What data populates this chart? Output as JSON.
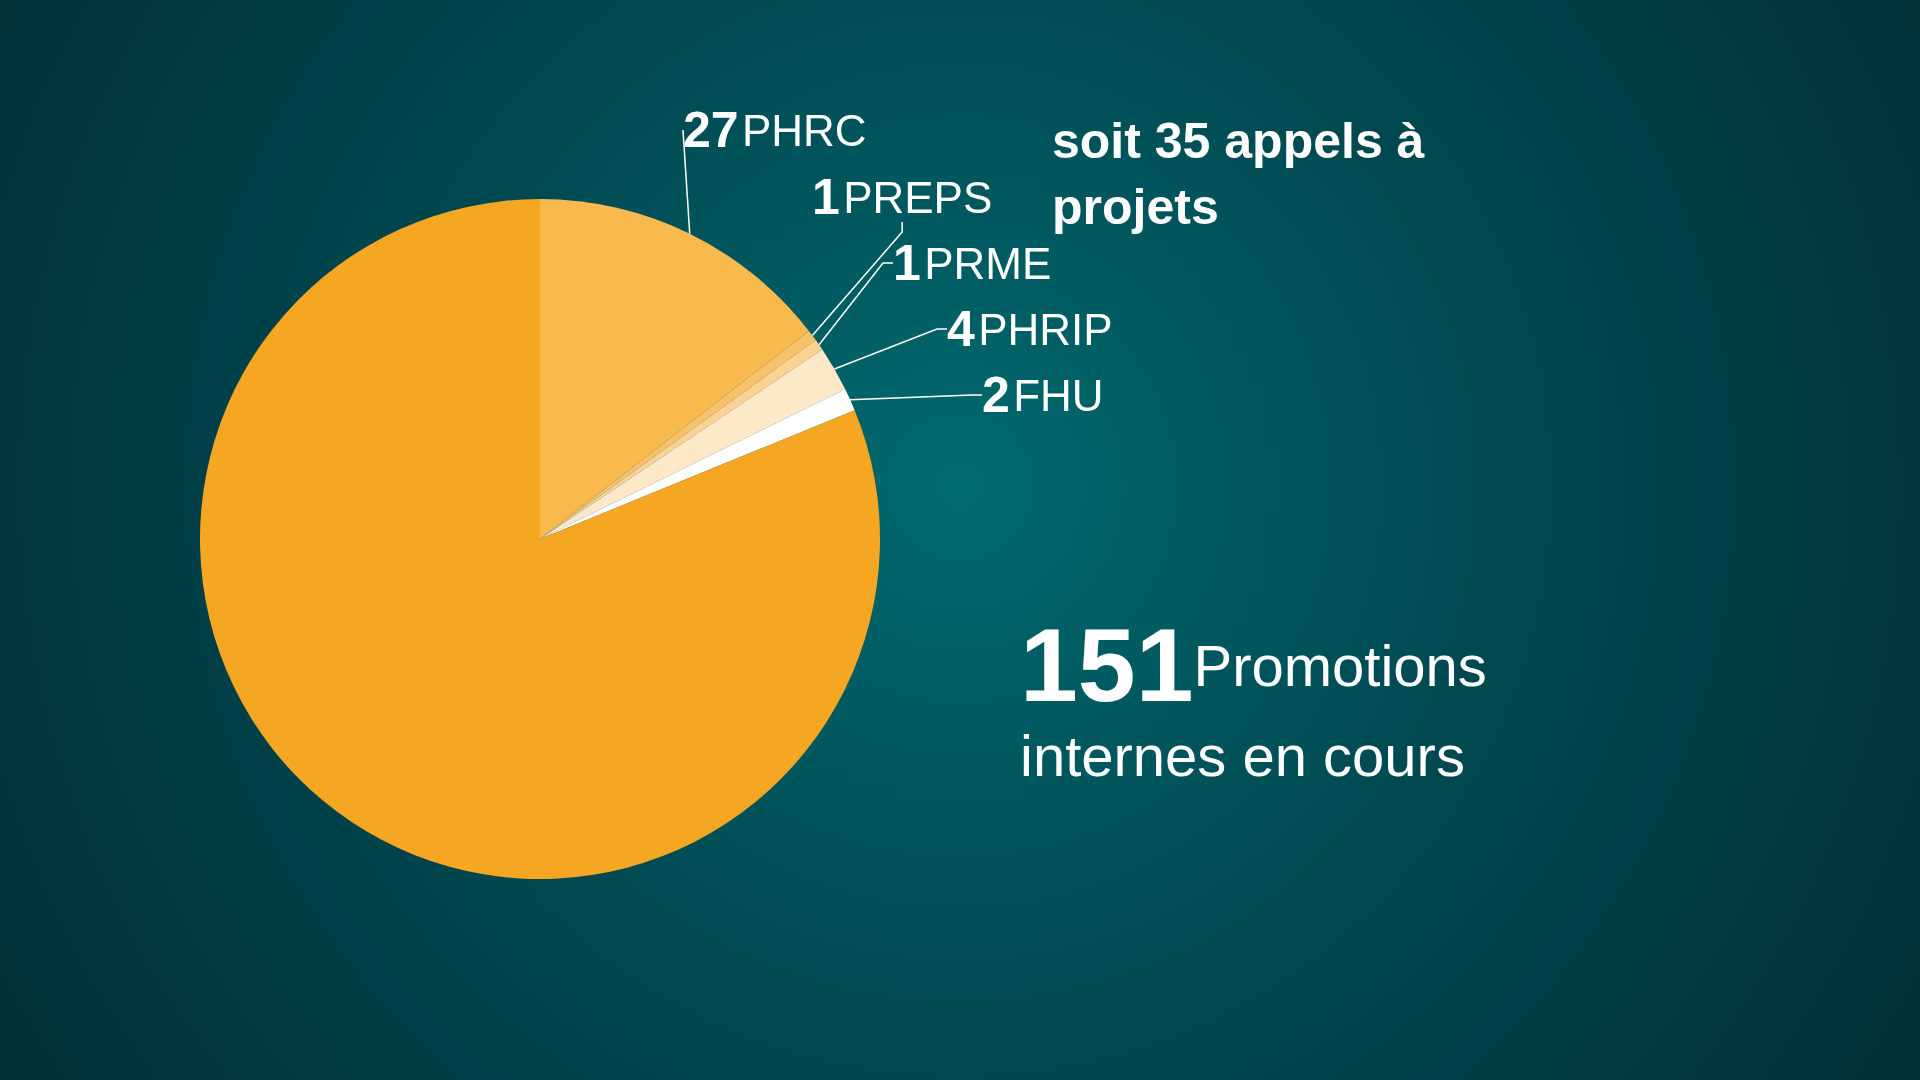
{
  "chart_data": {
    "type": "pie",
    "categories": [
      "PHRC",
      "PREPS",
      "PRME",
      "PHRIP",
      "FHU",
      "Promotions internes en cours"
    ],
    "values": [
      27,
      1,
      1,
      4,
      2,
      151
    ],
    "colors": [
      "#f8b94d",
      "#f9c26a",
      "#fbd291",
      "#fde9c8",
      "#ffffff",
      "#f5a623"
    ],
    "data_labels": true,
    "annotations": [
      "soit 35 appels à projets"
    ]
  }
}
